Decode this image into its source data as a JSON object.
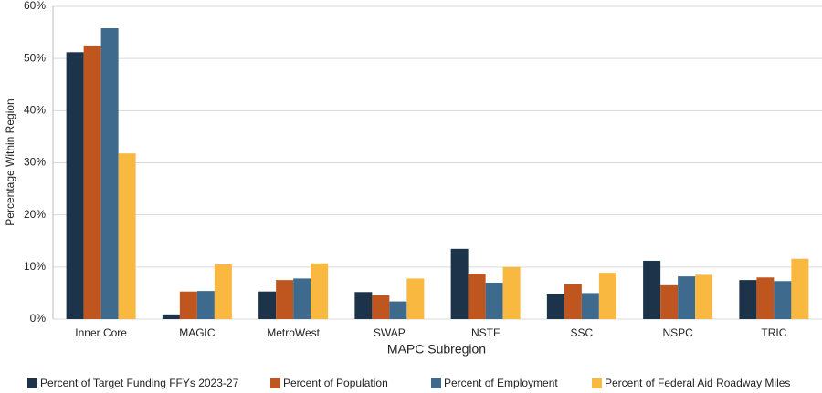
{
  "chart_data": {
    "type": "bar",
    "x_label": "MAPC Subregion",
    "y_label": "Percentage Within Region",
    "categories": [
      "Inner Core",
      "MAGIC",
      "MetroWest",
      "SWAP",
      "NSTF",
      "SSC",
      "NSPC",
      "TRIC"
    ],
    "series": [
      {
        "name": "Percent of Target Funding FFYs 2023-27",
        "color": "#1c3349",
        "values": [
          51.2,
          0.9,
          5.3,
          5.2,
          13.5,
          4.9,
          11.2,
          7.5
        ]
      },
      {
        "name": "Percent of Population",
        "color": "#c0561f",
        "values": [
          52.5,
          5.3,
          7.5,
          4.6,
          8.7,
          6.7,
          6.5,
          8.0
        ]
      },
      {
        "name": "Percent of Employment",
        "color": "#3e6a8e",
        "values": [
          55.8,
          5.4,
          7.8,
          3.4,
          7.0,
          5.0,
          8.2,
          7.3
        ]
      },
      {
        "name": "Percent of Federal Aid Roadway Miles",
        "color": "#f9b840",
        "values": [
          31.8,
          10.5,
          10.7,
          7.8,
          10.0,
          8.9,
          8.5,
          11.6
        ]
      }
    ],
    "ylim": [
      0,
      60
    ],
    "yticks": [
      {
        "value": 0,
        "label": "0%"
      },
      {
        "value": 10,
        "label": "10%"
      },
      {
        "value": 20,
        "label": "20%"
      },
      {
        "value": 30,
        "label": "30%"
      },
      {
        "value": 40,
        "label": "40%"
      },
      {
        "value": 50,
        "label": "50%"
      },
      {
        "value": 60,
        "label": "60%"
      }
    ],
    "grid": true,
    "legend": "bottom"
  }
}
